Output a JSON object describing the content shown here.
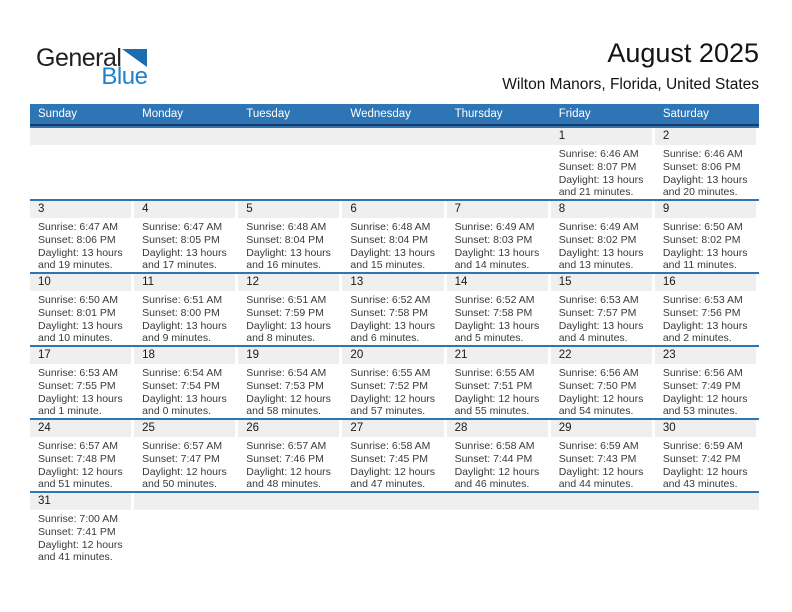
{
  "logo": {
    "text_general": "General",
    "text_blue": "Blue"
  },
  "header": {
    "title": "August 2025",
    "location": "Wilton Manors, Florida, United States"
  },
  "colors": {
    "weekday_bar": "#2E75B6",
    "weekday_bar_underline": "#203864",
    "row_divider": "#2E75B6",
    "day_number_band": "#EFEFEF",
    "logo_blue": "#1E81C9",
    "logo_triangle": "#1E6CB0"
  },
  "calendar": {
    "weekdays": [
      "Sunday",
      "Monday",
      "Tuesday",
      "Wednesday",
      "Thursday",
      "Friday",
      "Saturday"
    ],
    "weeks": [
      [
        null,
        null,
        null,
        null,
        null,
        {
          "day": "1",
          "sunrise": "Sunrise: 6:46 AM",
          "sunset": "Sunset: 8:07 PM",
          "daylight1": "Daylight: 13 hours",
          "daylight2": "and 21 minutes."
        },
        {
          "day": "2",
          "sunrise": "Sunrise: 6:46 AM",
          "sunset": "Sunset: 8:06 PM",
          "daylight1": "Daylight: 13 hours",
          "daylight2": "and 20 minutes."
        }
      ],
      [
        {
          "day": "3",
          "sunrise": "Sunrise: 6:47 AM",
          "sunset": "Sunset: 8:06 PM",
          "daylight1": "Daylight: 13 hours",
          "daylight2": "and 19 minutes."
        },
        {
          "day": "4",
          "sunrise": "Sunrise: 6:47 AM",
          "sunset": "Sunset: 8:05 PM",
          "daylight1": "Daylight: 13 hours",
          "daylight2": "and 17 minutes."
        },
        {
          "day": "5",
          "sunrise": "Sunrise: 6:48 AM",
          "sunset": "Sunset: 8:04 PM",
          "daylight1": "Daylight: 13 hours",
          "daylight2": "and 16 minutes."
        },
        {
          "day": "6",
          "sunrise": "Sunrise: 6:48 AM",
          "sunset": "Sunset: 8:04 PM",
          "daylight1": "Daylight: 13 hours",
          "daylight2": "and 15 minutes."
        },
        {
          "day": "7",
          "sunrise": "Sunrise: 6:49 AM",
          "sunset": "Sunset: 8:03 PM",
          "daylight1": "Daylight: 13 hours",
          "daylight2": "and 14 minutes."
        },
        {
          "day": "8",
          "sunrise": "Sunrise: 6:49 AM",
          "sunset": "Sunset: 8:02 PM",
          "daylight1": "Daylight: 13 hours",
          "daylight2": "and 13 minutes."
        },
        {
          "day": "9",
          "sunrise": "Sunrise: 6:50 AM",
          "sunset": "Sunset: 8:02 PM",
          "daylight1": "Daylight: 13 hours",
          "daylight2": "and 11 minutes."
        }
      ],
      [
        {
          "day": "10",
          "sunrise": "Sunrise: 6:50 AM",
          "sunset": "Sunset: 8:01 PM",
          "daylight1": "Daylight: 13 hours",
          "daylight2": "and 10 minutes."
        },
        {
          "day": "11",
          "sunrise": "Sunrise: 6:51 AM",
          "sunset": "Sunset: 8:00 PM",
          "daylight1": "Daylight: 13 hours",
          "daylight2": "and 9 minutes."
        },
        {
          "day": "12",
          "sunrise": "Sunrise: 6:51 AM",
          "sunset": "Sunset: 7:59 PM",
          "daylight1": "Daylight: 13 hours",
          "daylight2": "and 8 minutes."
        },
        {
          "day": "13",
          "sunrise": "Sunrise: 6:52 AM",
          "sunset": "Sunset: 7:58 PM",
          "daylight1": "Daylight: 13 hours",
          "daylight2": "and 6 minutes."
        },
        {
          "day": "14",
          "sunrise": "Sunrise: 6:52 AM",
          "sunset": "Sunset: 7:58 PM",
          "daylight1": "Daylight: 13 hours",
          "daylight2": "and 5 minutes."
        },
        {
          "day": "15",
          "sunrise": "Sunrise: 6:53 AM",
          "sunset": "Sunset: 7:57 PM",
          "daylight1": "Daylight: 13 hours",
          "daylight2": "and 4 minutes."
        },
        {
          "day": "16",
          "sunrise": "Sunrise: 6:53 AM",
          "sunset": "Sunset: 7:56 PM",
          "daylight1": "Daylight: 13 hours",
          "daylight2": "and 2 minutes."
        }
      ],
      [
        {
          "day": "17",
          "sunrise": "Sunrise: 6:53 AM",
          "sunset": "Sunset: 7:55 PM",
          "daylight1": "Daylight: 13 hours",
          "daylight2": "and 1 minute."
        },
        {
          "day": "18",
          "sunrise": "Sunrise: 6:54 AM",
          "sunset": "Sunset: 7:54 PM",
          "daylight1": "Daylight: 13 hours",
          "daylight2": "and 0 minutes."
        },
        {
          "day": "19",
          "sunrise": "Sunrise: 6:54 AM",
          "sunset": "Sunset: 7:53 PM",
          "daylight1": "Daylight: 12 hours",
          "daylight2": "and 58 minutes."
        },
        {
          "day": "20",
          "sunrise": "Sunrise: 6:55 AM",
          "sunset": "Sunset: 7:52 PM",
          "daylight1": "Daylight: 12 hours",
          "daylight2": "and 57 minutes."
        },
        {
          "day": "21",
          "sunrise": "Sunrise: 6:55 AM",
          "sunset": "Sunset: 7:51 PM",
          "daylight1": "Daylight: 12 hours",
          "daylight2": "and 55 minutes."
        },
        {
          "day": "22",
          "sunrise": "Sunrise: 6:56 AM",
          "sunset": "Sunset: 7:50 PM",
          "daylight1": "Daylight: 12 hours",
          "daylight2": "and 54 minutes."
        },
        {
          "day": "23",
          "sunrise": "Sunrise: 6:56 AM",
          "sunset": "Sunset: 7:49 PM",
          "daylight1": "Daylight: 12 hours",
          "daylight2": "and 53 minutes."
        }
      ],
      [
        {
          "day": "24",
          "sunrise": "Sunrise: 6:57 AM",
          "sunset": "Sunset: 7:48 PM",
          "daylight1": "Daylight: 12 hours",
          "daylight2": "and 51 minutes."
        },
        {
          "day": "25",
          "sunrise": "Sunrise: 6:57 AM",
          "sunset": "Sunset: 7:47 PM",
          "daylight1": "Daylight: 12 hours",
          "daylight2": "and 50 minutes."
        },
        {
          "day": "26",
          "sunrise": "Sunrise: 6:57 AM",
          "sunset": "Sunset: 7:46 PM",
          "daylight1": "Daylight: 12 hours",
          "daylight2": "and 48 minutes."
        },
        {
          "day": "27",
          "sunrise": "Sunrise: 6:58 AM",
          "sunset": "Sunset: 7:45 PM",
          "daylight1": "Daylight: 12 hours",
          "daylight2": "and 47 minutes."
        },
        {
          "day": "28",
          "sunrise": "Sunrise: 6:58 AM",
          "sunset": "Sunset: 7:44 PM",
          "daylight1": "Daylight: 12 hours",
          "daylight2": "and 46 minutes."
        },
        {
          "day": "29",
          "sunrise": "Sunrise: 6:59 AM",
          "sunset": "Sunset: 7:43 PM",
          "daylight1": "Daylight: 12 hours",
          "daylight2": "and 44 minutes."
        },
        {
          "day": "30",
          "sunrise": "Sunrise: 6:59 AM",
          "sunset": "Sunset: 7:42 PM",
          "daylight1": "Daylight: 12 hours",
          "daylight2": "and 43 minutes."
        }
      ],
      [
        {
          "day": "31",
          "sunrise": "Sunrise: 7:00 AM",
          "sunset": "Sunset: 7:41 PM",
          "daylight1": "Daylight: 12 hours",
          "daylight2": "and 41 minutes."
        },
        null,
        null,
        null,
        null,
        null,
        null
      ]
    ]
  }
}
